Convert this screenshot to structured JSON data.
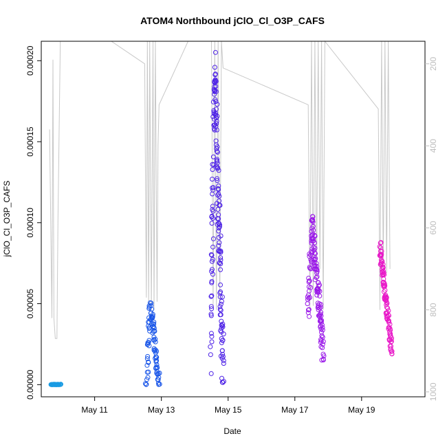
{
  "chart_data": {
    "type": "scatter",
    "title": "ATOM4 Northbound jClO_Cl_O3P_CAFS",
    "xlabel": "Date",
    "ylabel": "jClO_Cl_O3P_CAFS",
    "x_ticks": [
      "May 11",
      "May 13",
      "May 15",
      "May 17",
      "May 19"
    ],
    "x_range_days": [
      9.4,
      20.9
    ],
    "y_ticks": [
      "0.00000",
      "0.00005",
      "0.00010",
      "0.00015",
      "0.00020"
    ],
    "ylim": [
      -7.5e-06,
      0.000212
    ],
    "y2_ticks": [
      "200",
      "400",
      "600",
      "800",
      "1000"
    ],
    "y2lim": [
      1012,
      145
    ],
    "y2_reversed": true,
    "grid": false,
    "series": [
      {
        "color": "#1A9BE3",
        "x_start": 9.7,
        "x_end": 9.97,
        "y_start": 0.0,
        "y_end": 0.0,
        "n": 40,
        "jitter": 3e-07
      },
      {
        "color": "#1A56E8",
        "x_start": 12.55,
        "x_end": 12.93,
        "y_start": 0.0,
        "y_end": 0.0,
        "peak": 5.1e-05,
        "peak_x": 12.67,
        "n": 90,
        "jitter": 6e-06
      },
      {
        "color": "#4B1FE6",
        "x_start": 14.48,
        "x_end": 14.85,
        "y_start": 2e-05,
        "y_end": 2e-06,
        "peak": 0.0002,
        "peak_x": 14.6,
        "n": 170,
        "jitter": 1.8e-05
      },
      {
        "color": "#9A19E8",
        "x_start": 17.4,
        "x_end": 17.85,
        "y_start": 4.5e-05,
        "y_end": 2e-05,
        "peak": 9.9e-05,
        "peak_x": 17.52,
        "n": 140,
        "jitter": 1e-05
      },
      {
        "color": "#E819C8",
        "x_start": 19.55,
        "x_end": 19.9,
        "y_start": 8.5e-05,
        "y_end": 2.1e-05,
        "n": 110,
        "jitter": 4e-06
      }
    ],
    "pressure_line": {
      "color": "#c8c8c8",
      "points": [
        [
          9.65,
          360
        ],
        [
          9.72,
          820
        ],
        [
          9.75,
          190
        ],
        [
          9.78,
          820
        ],
        [
          9.82,
          870
        ],
        [
          9.87,
          870
        ],
        [
          9.9,
          580
        ],
        [
          9.93,
          400
        ],
        [
          9.97,
          145
        ],
        [
          11.5,
          145
        ],
        [
          12.5,
          200
        ],
        [
          12.55,
          770
        ],
        [
          12.58,
          145
        ],
        [
          12.62,
          790
        ],
        [
          12.65,
          145
        ],
        [
          12.7,
          800
        ],
        [
          12.75,
          145
        ],
        [
          12.78,
          800
        ],
        [
          12.82,
          145
        ],
        [
          12.87,
          780
        ],
        [
          12.9,
          400
        ],
        [
          12.93,
          300
        ],
        [
          13.8,
          145
        ],
        [
          14.5,
          145
        ],
        [
          14.55,
          790
        ],
        [
          14.6,
          145
        ],
        [
          14.65,
          800
        ],
        [
          14.7,
          145
        ],
        [
          14.75,
          790
        ],
        [
          14.8,
          145
        ],
        [
          14.85,
          210
        ],
        [
          17.4,
          300
        ],
        [
          17.45,
          800
        ],
        [
          17.5,
          145
        ],
        [
          17.55,
          790
        ],
        [
          17.6,
          145
        ],
        [
          17.65,
          760
        ],
        [
          17.7,
          145
        ],
        [
          17.75,
          700
        ],
        [
          17.8,
          145
        ],
        [
          17.85,
          800
        ],
        [
          17.9,
          145
        ],
        [
          19.5,
          310
        ],
        [
          19.55,
          800
        ],
        [
          19.6,
          145
        ],
        [
          19.65,
          700
        ],
        [
          19.7,
          145
        ],
        [
          19.75,
          710
        ],
        [
          19.8,
          145
        ],
        [
          19.85,
          700
        ]
      ]
    }
  }
}
